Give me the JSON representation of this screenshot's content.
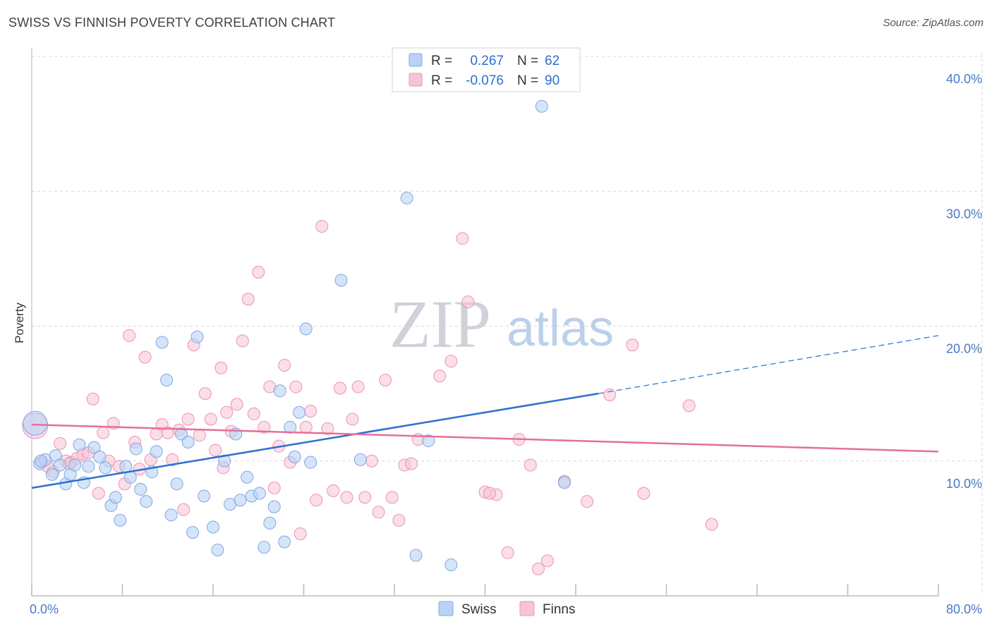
{
  "title": "SWISS VS FINNISH POVERTY CORRELATION CHART",
  "source": "Source: ZipAtlas.com",
  "watermark": {
    "zip": "ZIP",
    "atlas": "atlas"
  },
  "colors": {
    "swiss_fill": "#b9d3f5",
    "swiss_stroke": "#7fa8df",
    "swiss_line": "#2a6fd0",
    "finns_fill": "#f8c3d5",
    "finns_stroke": "#e894b4",
    "finns_line": "#e4709a",
    "tick_text": "#4a78c6",
    "grid": "#d8d8d8"
  },
  "legend": {
    "swiss": {
      "r_label": "R =",
      "r_value": "0.267",
      "n_label": "N =",
      "n_value": "62"
    },
    "finns": {
      "r_label": "R =",
      "r_value": "-0.076",
      "n_label": "N =",
      "n_value": "90"
    }
  },
  "chart_data": {
    "type": "scatter",
    "title": "SWISS VS FINNISH POVERTY CORRELATION CHART",
    "xlabel": "",
    "ylabel": "Poverty",
    "xlim": [
      0,
      80
    ],
    "ylim": [
      0,
      40
    ],
    "x_tick_labels": [
      {
        "value": 0,
        "label": "0.0%"
      },
      {
        "value": 80,
        "label": "80.0%"
      }
    ],
    "y_tick_labels": [
      {
        "value": 10,
        "label": "10.0%"
      },
      {
        "value": 20,
        "label": "20.0%"
      },
      {
        "value": 30,
        "label": "30.0%"
      },
      {
        "value": 40,
        "label": "40.0%"
      }
    ],
    "grid": true,
    "legend_position": "top-center",
    "series": [
      {
        "name": "Swiss",
        "trend": {
          "x0": 0,
          "y0": 8.0,
          "x1": 50,
          "y1": 15.0,
          "dash_to": 80,
          "dash_y": 19.3
        },
        "points": [
          [
            0.3,
            12.8
          ],
          [
            0.7,
            9.8
          ],
          [
            1.2,
            10.1
          ],
          [
            1.8,
            9.0
          ],
          [
            2.1,
            10.4
          ],
          [
            2.5,
            9.7
          ],
          [
            3.0,
            8.3
          ],
          [
            3.4,
            9.0
          ],
          [
            3.8,
            9.7
          ],
          [
            4.2,
            11.2
          ],
          [
            4.6,
            8.4
          ],
          [
            5.0,
            9.6
          ],
          [
            5.5,
            11.0
          ],
          [
            6.0,
            10.3
          ],
          [
            6.5,
            9.5
          ],
          [
            7.0,
            6.7
          ],
          [
            7.4,
            7.3
          ],
          [
            7.8,
            5.6
          ],
          [
            8.3,
            9.6
          ],
          [
            8.7,
            8.8
          ],
          [
            9.2,
            10.9
          ],
          [
            9.6,
            7.9
          ],
          [
            10.1,
            7.0
          ],
          [
            10.6,
            9.2
          ],
          [
            11.0,
            10.7
          ],
          [
            11.5,
            18.8
          ],
          [
            11.9,
            16.0
          ],
          [
            12.3,
            6.0
          ],
          [
            12.8,
            8.3
          ],
          [
            13.2,
            12.0
          ],
          [
            13.8,
            11.4
          ],
          [
            14.2,
            4.7
          ],
          [
            14.6,
            19.2
          ],
          [
            15.2,
            7.4
          ],
          [
            16.0,
            5.1
          ],
          [
            16.4,
            3.4
          ],
          [
            17.0,
            10.0
          ],
          [
            17.5,
            6.8
          ],
          [
            18.0,
            12.0
          ],
          [
            18.4,
            7.1
          ],
          [
            19.0,
            8.8
          ],
          [
            19.4,
            7.4
          ],
          [
            20.1,
            7.6
          ],
          [
            20.5,
            3.6
          ],
          [
            21.0,
            5.4
          ],
          [
            21.4,
            6.6
          ],
          [
            21.9,
            15.2
          ],
          [
            22.3,
            4.0
          ],
          [
            22.8,
            12.5
          ],
          [
            23.2,
            10.3
          ],
          [
            23.6,
            13.6
          ],
          [
            24.2,
            19.8
          ],
          [
            24.6,
            9.9
          ],
          [
            27.3,
            23.4
          ],
          [
            29.0,
            10.1
          ],
          [
            33.1,
            29.5
          ],
          [
            33.9,
            3.0
          ],
          [
            35.0,
            11.5
          ],
          [
            37.0,
            2.3
          ],
          [
            45.0,
            36.3
          ],
          [
            47.0,
            8.4
          ],
          [
            0.8,
            10.0
          ]
        ]
      },
      {
        "name": "Finns",
        "trend": {
          "x0": 0,
          "y0": 12.7,
          "x1": 80,
          "y1": 10.7
        },
        "points": [
          [
            0.3,
            12.6
          ],
          [
            0.9,
            9.9
          ],
          [
            1.4,
            9.6
          ],
          [
            1.9,
            9.2
          ],
          [
            2.5,
            11.3
          ],
          [
            3.0,
            10.0
          ],
          [
            3.5,
            9.9
          ],
          [
            4.0,
            10.2
          ],
          [
            4.5,
            10.5
          ],
          [
            5.0,
            10.6
          ],
          [
            5.4,
            14.6
          ],
          [
            5.9,
            7.6
          ],
          [
            6.3,
            12.1
          ],
          [
            6.8,
            10.0
          ],
          [
            7.2,
            12.8
          ],
          [
            7.7,
            9.6
          ],
          [
            8.2,
            8.3
          ],
          [
            8.6,
            19.3
          ],
          [
            9.1,
            11.4
          ],
          [
            9.5,
            9.4
          ],
          [
            10.0,
            17.7
          ],
          [
            10.5,
            10.1
          ],
          [
            11.0,
            12.0
          ],
          [
            11.5,
            12.7
          ],
          [
            12.0,
            12.1
          ],
          [
            12.4,
            10.1
          ],
          [
            13.0,
            12.3
          ],
          [
            13.4,
            6.4
          ],
          [
            13.8,
            13.1
          ],
          [
            14.3,
            18.6
          ],
          [
            14.8,
            11.9
          ],
          [
            15.3,
            15.0
          ],
          [
            15.8,
            13.1
          ],
          [
            16.2,
            10.8
          ],
          [
            16.7,
            16.9
          ],
          [
            17.2,
            13.6
          ],
          [
            17.6,
            12.2
          ],
          [
            18.1,
            14.2
          ],
          [
            18.6,
            18.9
          ],
          [
            19.1,
            22.0
          ],
          [
            19.6,
            13.5
          ],
          [
            20.0,
            24.0
          ],
          [
            20.5,
            12.5
          ],
          [
            21.0,
            15.5
          ],
          [
            21.4,
            8.0
          ],
          [
            21.8,
            11.1
          ],
          [
            22.3,
            17.1
          ],
          [
            22.8,
            9.9
          ],
          [
            23.3,
            15.5
          ],
          [
            23.7,
            4.6
          ],
          [
            24.2,
            12.5
          ],
          [
            24.6,
            13.7
          ],
          [
            25.1,
            7.1
          ],
          [
            25.6,
            27.4
          ],
          [
            26.1,
            12.4
          ],
          [
            26.6,
            7.8
          ],
          [
            27.2,
            15.4
          ],
          [
            27.8,
            7.3
          ],
          [
            28.3,
            13.1
          ],
          [
            28.8,
            15.5
          ],
          [
            29.4,
            7.3
          ],
          [
            30.0,
            10.0
          ],
          [
            30.6,
            6.2
          ],
          [
            31.2,
            16.0
          ],
          [
            31.8,
            7.3
          ],
          [
            32.4,
            5.6
          ],
          [
            32.9,
            9.7
          ],
          [
            33.5,
            9.8
          ],
          [
            34.1,
            11.6
          ],
          [
            36.0,
            16.3
          ],
          [
            37.0,
            17.4
          ],
          [
            38.0,
            26.5
          ],
          [
            38.5,
            21.8
          ],
          [
            40.0,
            7.7
          ],
          [
            41.0,
            7.5
          ],
          [
            42.0,
            3.2
          ],
          [
            43.0,
            11.6
          ],
          [
            44.0,
            9.7
          ],
          [
            44.7,
            2.0
          ],
          [
            45.5,
            2.6
          ],
          [
            47.0,
            8.5
          ],
          [
            49.0,
            7.0
          ],
          [
            51.0,
            14.9
          ],
          [
            53.0,
            18.6
          ],
          [
            54.0,
            7.6
          ],
          [
            58.0,
            14.1
          ],
          [
            60.0,
            5.3
          ],
          [
            3.3,
            9.8
          ],
          [
            16.9,
            9.5
          ],
          [
            40.4,
            7.6
          ]
        ]
      }
    ]
  },
  "bottom_legend": [
    {
      "key": "swiss",
      "label": "Swiss"
    },
    {
      "key": "finns",
      "label": "Finns"
    }
  ]
}
